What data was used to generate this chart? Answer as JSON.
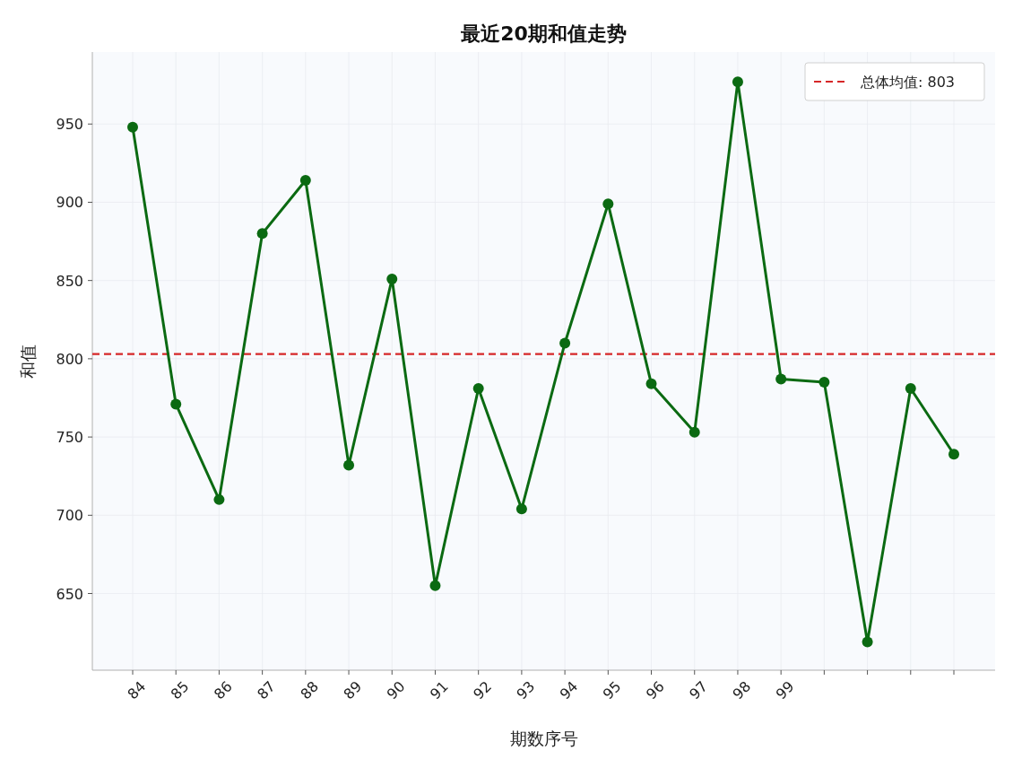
{
  "chart_data": {
    "type": "line",
    "title": "最近20期和值走势",
    "xlabel": "期数序号",
    "ylabel": "和值",
    "categories": [
      "84",
      "85",
      "86",
      "87",
      "88",
      "89",
      "90",
      "91",
      "92",
      "93",
      "94",
      "95",
      "96",
      "97",
      "98",
      "99",
      null,
      null,
      null,
      null
    ],
    "series": [
      {
        "color": "#0b6a12",
        "values": [
          948,
          771,
          710,
          880,
          914,
          732,
          851,
          655,
          781,
          704,
          810,
          899,
          784,
          753,
          977,
          787,
          785,
          619,
          781,
          739
        ]
      }
    ],
    "ylim": [
      601,
      996
    ],
    "yticks": [
      650,
      700,
      750,
      800,
      850,
      900,
      950
    ],
    "ref_lines": [
      {
        "axis": "y",
        "value": 803,
        "label": "总体均值: 803",
        "color": "#d62728",
        "line_style": "dashed"
      }
    ],
    "grid": true,
    "legend": "top right",
    "marker": "circle",
    "line_style": "solid"
  }
}
